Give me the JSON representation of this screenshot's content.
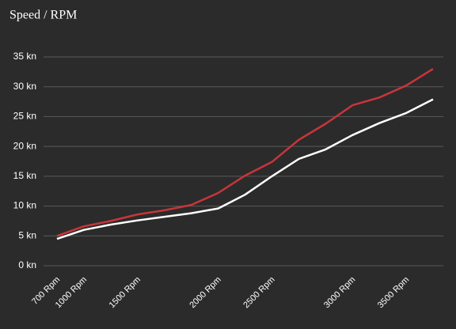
{
  "chart_data": {
    "type": "line",
    "title": "Speed / RPM",
    "categories": [
      "700 Rpm",
      "1000 Rpm",
      null,
      "1500 Rpm",
      null,
      null,
      "2000 Rpm",
      null,
      "2500 Rpm",
      null,
      null,
      "3000 Rpm",
      null,
      "3500 Rpm",
      null
    ],
    "series": [
      {
        "color": "#c8353b",
        "values": [
          5.0,
          6.6,
          7.5,
          8.6,
          9.3,
          10.2,
          12.2,
          15.1,
          17.4,
          21.1,
          23.8,
          26.9,
          28.2,
          30.2,
          33.0
        ]
      },
      {
        "color": "#ffffff",
        "values": [
          4.5,
          6.0,
          6.9,
          7.6,
          8.2,
          8.8,
          9.6,
          11.9,
          15.0,
          17.9,
          19.5,
          21.9,
          23.9,
          25.6,
          27.9
        ]
      }
    ],
    "ylim": [
      0,
      35
    ],
    "yticks": [
      {
        "value": 0,
        "label": "0 kn"
      },
      {
        "value": 5,
        "label": "5 kn"
      },
      {
        "value": 10,
        "label": "10 kn"
      },
      {
        "value": 15,
        "label": "15 kn"
      },
      {
        "value": 20,
        "label": "20 kn"
      },
      {
        "value": 25,
        "label": "25 kn"
      },
      {
        "value": 30,
        "label": "30 kn"
      },
      {
        "value": 35,
        "label": "35 kn"
      }
    ],
    "grid": true
  }
}
